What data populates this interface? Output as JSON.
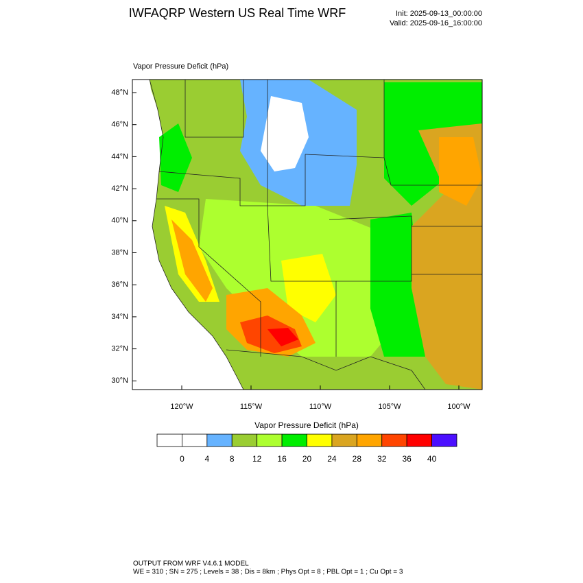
{
  "header": {
    "title": "IWFAQRP Western US Real Time WRF",
    "init": "Init: 2025-09-13_00:00:00",
    "valid": "Valid: 2025-09-16_16:00:00"
  },
  "map": {
    "label": "Vapor Pressure Deficit   (hPa)",
    "lat_labels": [
      "48°N",
      "46°N",
      "44°N",
      "42°N",
      "40°N",
      "38°N",
      "36°N",
      "34°N",
      "32°N",
      "30°N"
    ],
    "lon_labels": [
      "120°W",
      "115°W",
      "110°W",
      "105°W",
      "100°W"
    ]
  },
  "colorbar": {
    "title": "Vapor Pressure Deficit  (hPa)",
    "colors": [
      "#ffffff",
      "#ffffff",
      "#66b3ff",
      "#9acd32",
      "#adff2f",
      "#00ee00",
      "#ffff00",
      "#daa520",
      "#ffa500",
      "#ff4500",
      "#ff0000",
      "#4b0fff"
    ],
    "labels": [
      0,
      4,
      8,
      12,
      16,
      20,
      24,
      28,
      32,
      36,
      40
    ]
  },
  "footer": {
    "line1": "OUTPUT FROM WRF V4.6.1 MODEL",
    "line2": "WE = 310 ; SN = 275 ; Levels = 38 ; Dis = 8km ; Phys Opt = 8 ; PBL Opt = 1 ; Cu Opt = 3"
  }
}
